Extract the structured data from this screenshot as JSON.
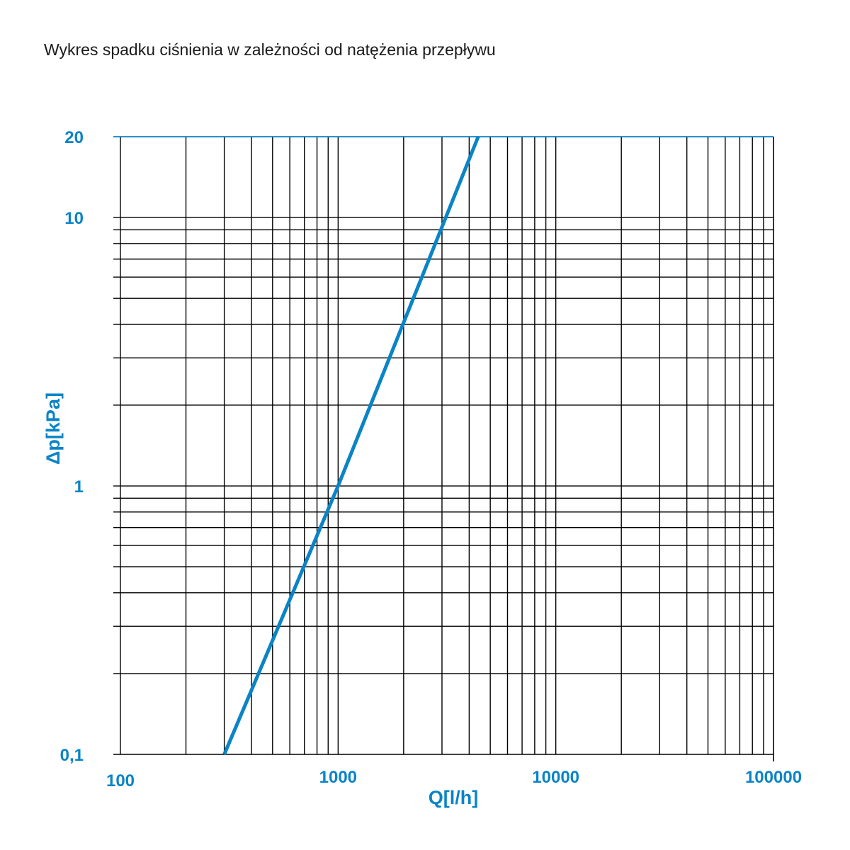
{
  "chart_data": {
    "type": "line",
    "title": "Wykres spadku ciśnienia w zależności od natężenia przepływu",
    "xlabel": "Q[l/h]",
    "ylabel": "Δp[kPa]",
    "x_scale": "log",
    "y_scale": "log",
    "xlim": [
      100,
      100000
    ],
    "ylim": [
      0.1,
      20
    ],
    "grid": true,
    "x_ticks": [
      {
        "value": 100,
        "label": "100"
      },
      {
        "value": 1000,
        "label": "1000"
      },
      {
        "value": 10000,
        "label": "10000"
      },
      {
        "value": 100000,
        "label": "100000"
      }
    ],
    "y_ticks": [
      {
        "value": 0.1,
        "label": "0,1"
      },
      {
        "value": 1,
        "label": "1"
      },
      {
        "value": 10,
        "label": "10"
      },
      {
        "value": 20,
        "label": "20"
      }
    ],
    "series": [
      {
        "x": [
          300,
          1000,
          4400
        ],
        "y": [
          0.1,
          1.0,
          20
        ]
      }
    ]
  },
  "colors": {
    "accent": "#0a84c6",
    "grid": "#000000",
    "title": "#1a1a1a"
  }
}
